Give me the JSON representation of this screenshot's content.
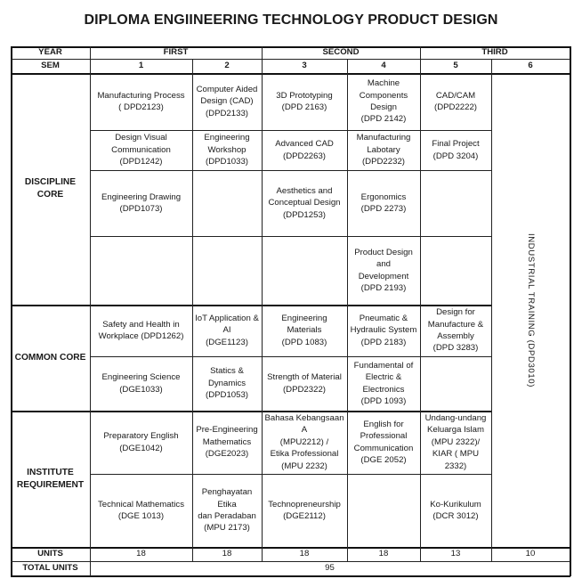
{
  "title": "DIPLOMA ENGIINEERING TECHNOLOGY PRODUCT DESIGN",
  "header": {
    "year_label": "YEAR",
    "sem_label": "SEM",
    "years": [
      "FIRST",
      "SECOND",
      "THIRD"
    ],
    "sems": [
      "1",
      "2",
      "3",
      "4",
      "5",
      "6"
    ]
  },
  "categories": {
    "discipline": "DISCIPLINE CORE",
    "common": "COMMON CORE",
    "institute": "INSTITUTE\nREQUIREMENT"
  },
  "courses": {
    "dc_r1": [
      "Manufacturing Process\n( DPD2123)",
      "Computer Aided\nDesign (CAD)\n(DPD2133)",
      "3D Prototyping\n(DPD 2163)",
      "Machine\nComponents\nDesign\n(DPD 2142)",
      "CAD/CAM\n(DPD2222)"
    ],
    "dc_r2": [
      "Design Visual\nCommunication\n(DPD1242)",
      "Engineering\nWorkshop\n(DPD1033)",
      "Advanced CAD\n(DPD2263)",
      "Manufacturing\nLabotary\n(DPD2232)",
      "Final Project\n(DPD 3204)"
    ],
    "dc_r3": [
      "Engineering Drawing\n(DPD1073)",
      "",
      "Aesthetics and\nConceptual Design\n(DPD1253)",
      "Ergonomics\n(DPD 2273)",
      ""
    ],
    "dc_r4": [
      "",
      "",
      "",
      "Product Design and\nDevelopment\n(DPD 2193)",
      ""
    ],
    "cc_r1": [
      "Safety and Health in\nWorkplace (DPD1262)",
      "IoT Application &\nAI\n(DGE1123)",
      "Engineering Materials\n(DPD 1083)",
      "Pneumatic &\nHydraulic System\n(DPD 2183)",
      "Design for\nManufacture &\nAssembly\n(DPD 3283)"
    ],
    "cc_r2": [
      "Engineering Science\n(DGE1033)",
      "Statics &\nDynamics\n(DPD1053)",
      "Strength of Material\n(DPD2322)",
      "Fundamental of\nElectric &\nElectronics\n(DPD 1093)",
      ""
    ],
    "ir_r1": [
      "Preparatory English\n(DGE1042)",
      "Pre-Engineering\nMathematics\n(DGE2023)",
      "Bahasa Kebangsaan A\n(MPU2212) /\nEtika Professional\n(MPU 2232)",
      "English for\nProfessional\nCommunication\n(DGE 2052)",
      "Undang-undang\nKeluarga Islam\n(MPU 2322)/\nKIAR ( MPU 2332)"
    ],
    "ir_r2": [
      "Technical Mathematics\n(DGE 1013)",
      "Penghayatan Etika\ndan Peradaban\n(MPU 2173)",
      "Technopreneurship\n(DGE2112)",
      "",
      "Ko-Kurikulum\n(DCR 3012)"
    ]
  },
  "industrial_training": "INDUSTRIAL TRAINING (DPD3010)",
  "units": {
    "label": "UNITS",
    "values": [
      "18",
      "18",
      "18",
      "18",
      "13",
      "10"
    ],
    "total_label": "TOTAL UNITS",
    "total_value": "95"
  }
}
